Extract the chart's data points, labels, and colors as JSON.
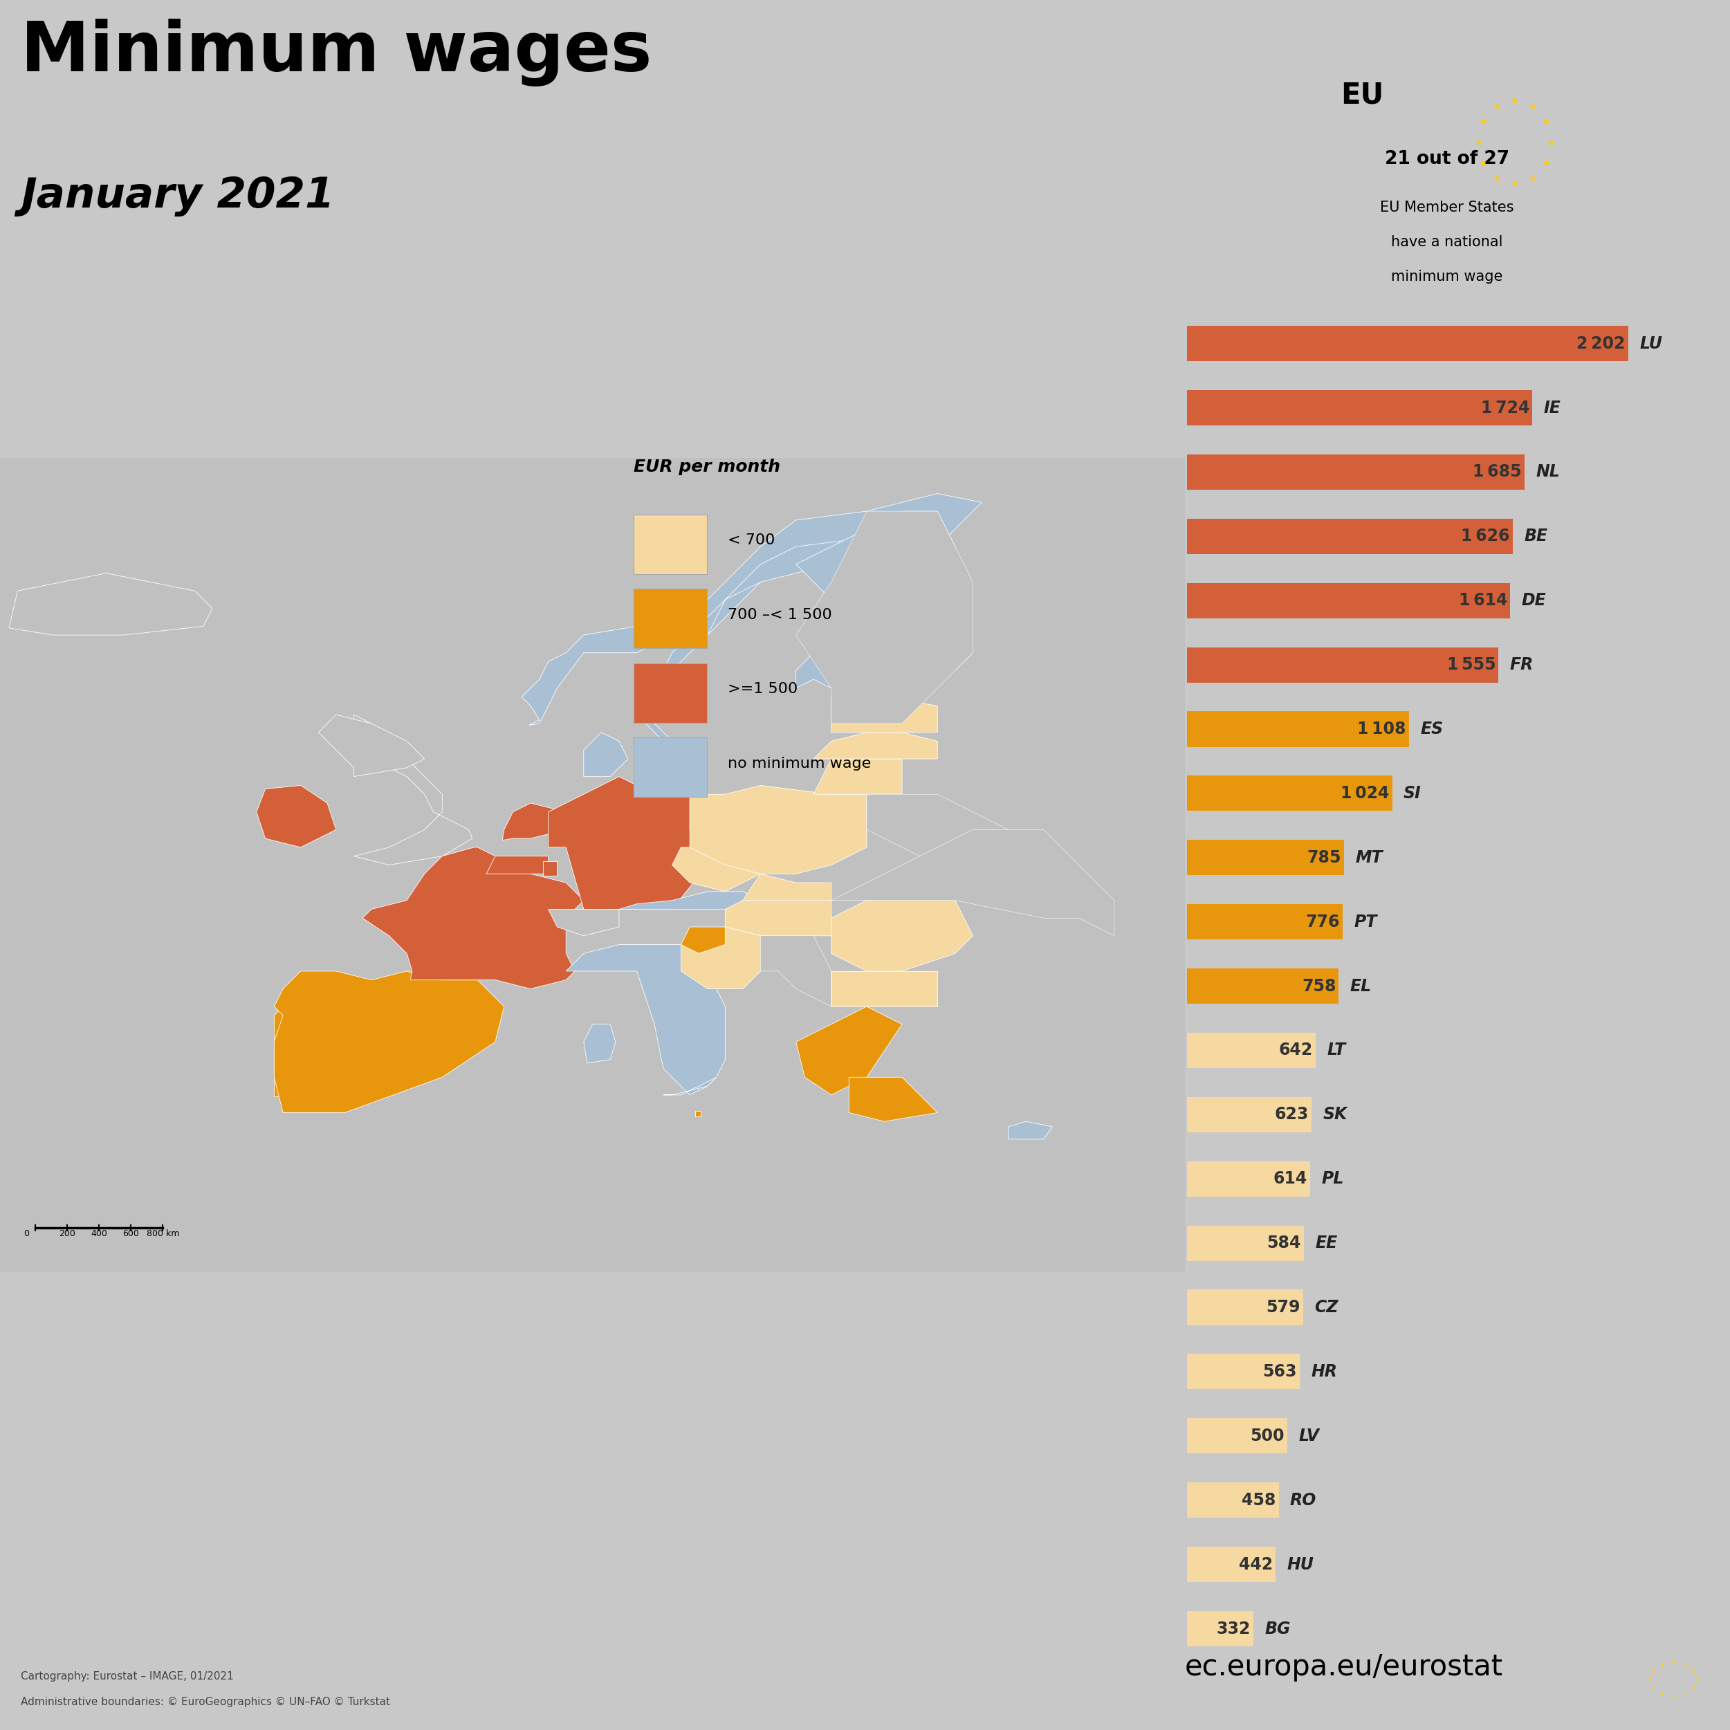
{
  "title": "Minimum wages",
  "subtitle": "January 2021",
  "bg_color": "#c8c8c8",
  "map_bg": "#ffffff",
  "land_gray": "#c0c0c0",
  "panel_bg": "#c8c8c8",
  "no_min_color": "#a8bfd4",
  "low_color": "#f5d9a0",
  "mid_color": "#e8960c",
  "high_color": "#d4603a",
  "legend_title": "EUR per month",
  "legend_items": [
    {
      "label": "< 700",
      "color": "#f5d9a0"
    },
    {
      "label": "700 –< 1 500",
      "color": "#e8960c"
    },
    {
      "label": ">=1 500",
      "color": "#d4603a"
    },
    {
      "label": "no minimum wage",
      "color": "#a8bfd4"
    }
  ],
  "countries": [
    {
      "code": "BG",
      "value": 332,
      "color": "#f5d9a0"
    },
    {
      "code": "HU",
      "value": 442,
      "color": "#f5d9a0"
    },
    {
      "code": "RO",
      "value": 458,
      "color": "#f5d9a0"
    },
    {
      "code": "LV",
      "value": 500,
      "color": "#f5d9a0"
    },
    {
      "code": "HR",
      "value": 563,
      "color": "#f5d9a0"
    },
    {
      "code": "CZ",
      "value": 579,
      "color": "#f5d9a0"
    },
    {
      "code": "EE",
      "value": 584,
      "color": "#f5d9a0"
    },
    {
      "code": "PL",
      "value": 614,
      "color": "#f5d9a0"
    },
    {
      "code": "SK",
      "value": 623,
      "color": "#f5d9a0"
    },
    {
      "code": "LT",
      "value": 642,
      "color": "#f5d9a0"
    },
    {
      "code": "EL",
      "value": 758,
      "color": "#e8960c"
    },
    {
      "code": "PT",
      "value": 776,
      "color": "#e8960c"
    },
    {
      "code": "MT",
      "value": 785,
      "color": "#e8960c"
    },
    {
      "code": "SI",
      "value": 1024,
      "color": "#e8960c"
    },
    {
      "code": "ES",
      "value": 1108,
      "color": "#e8960c"
    },
    {
      "code": "FR",
      "value": 1555,
      "color": "#d4603a"
    },
    {
      "code": "DE",
      "value": 1614,
      "color": "#d4603a"
    },
    {
      "code": "BE",
      "value": 1626,
      "color": "#d4603a"
    },
    {
      "code": "NL",
      "value": 1685,
      "color": "#d4603a"
    },
    {
      "code": "IE",
      "value": 1724,
      "color": "#d4603a"
    },
    {
      "code": "LU",
      "value": 2202,
      "color": "#d4603a"
    }
  ],
  "footnote1": "Cartography: Eurostat – IMAGE, 01/2021",
  "footnote2": "Administrative boundaries: © EuroGeographics © UN–FAO © Turkstat",
  "website": "ec.europa.eu/eurostat",
  "max_bar_value": 2202,
  "bar_label_fontsize": 17,
  "title_fontsize": 72,
  "subtitle_fontsize": 44
}
